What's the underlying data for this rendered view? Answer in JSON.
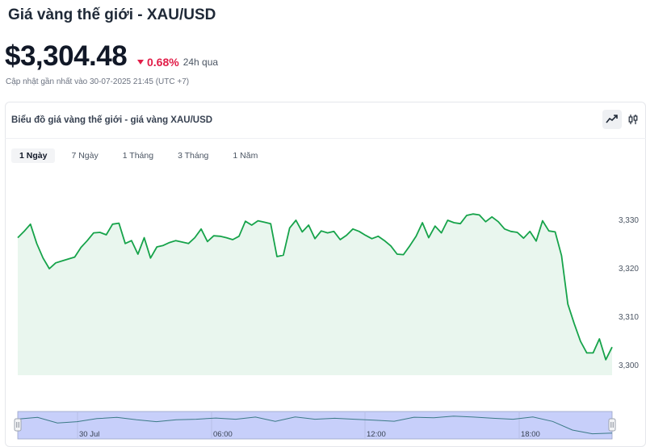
{
  "header": {
    "title": "Giá vàng thế giới - XAU/USD",
    "price": "$3,304.48",
    "change_pct": "0.68%",
    "change_period": "24h qua",
    "updated": "Cập nhật gần nhất vào 30-07-2025 21:45 (UTC +7)"
  },
  "chart_panel": {
    "title": "Biểu đồ giá vàng thế giới - giá vàng XAU/USD",
    "line_icon": "line-chart-icon",
    "candle_icon": "candlestick-icon",
    "tabs": [
      {
        "label": "1 Ngày",
        "active": true
      },
      {
        "label": "7 Ngày",
        "active": false
      },
      {
        "label": "1 Tháng",
        "active": false
      },
      {
        "label": "3 Tháng",
        "active": false
      },
      {
        "label": "1 Năm",
        "active": false
      }
    ]
  },
  "colors": {
    "line": "#16a34a",
    "area": "#e9f6ee",
    "down": "#e11d48",
    "navigator": "#c7cffa"
  },
  "chart_data": {
    "type": "area",
    "y_ticks": [
      "3,330",
      "3,320",
      "3,310",
      "3,300"
    ],
    "y_tick_values": [
      3330,
      3320,
      3310,
      3300
    ],
    "ylim": [
      3299.3,
      3339.3
    ],
    "x_labels": [
      "30 Jul",
      "06:00",
      "12:00",
      "18:00"
    ],
    "grid": false,
    "values": [
      3326.2,
      3327.5,
      3329.0,
      3325.0,
      3322.0,
      3319.8,
      3321.0,
      3321.4,
      3321.8,
      3322.2,
      3324.2,
      3325.6,
      3327.2,
      3327.3,
      3326.8,
      3329.0,
      3329.2,
      3325.0,
      3325.6,
      3322.8,
      3326.2,
      3322.0,
      3324.3,
      3324.6,
      3325.2,
      3325.6,
      3325.3,
      3325.0,
      3326.2,
      3328.0,
      3325.4,
      3326.6,
      3326.5,
      3326.2,
      3325.8,
      3326.5,
      3329.6,
      3328.8,
      3329.7,
      3329.4,
      3329.1,
      3322.3,
      3322.6,
      3328.2,
      3329.8,
      3327.4,
      3328.8,
      3326.0,
      3327.6,
      3327.2,
      3327.5,
      3325.8,
      3326.7,
      3328.0,
      3327.5,
      3326.7,
      3326.0,
      3326.5,
      3325.6,
      3324.5,
      3322.8,
      3322.7,
      3324.5,
      3326.5,
      3329.3,
      3326.2,
      3328.6,
      3327.2,
      3329.8,
      3329.3,
      3329.1,
      3330.8,
      3331.1,
      3330.9,
      3329.5,
      3330.5,
      3329.5,
      3328.0,
      3327.5,
      3327.3,
      3326.1,
      3327.5,
      3325.5,
      3329.7,
      3327.6,
      3327.4,
      3322.5,
      3312.5,
      3308.5,
      3304.8,
      3302.4,
      3302.4,
      3305.3,
      3301.0,
      3303.6
    ]
  },
  "navigator_data": {
    "values": [
      3326.2,
      3329.0,
      3320.0,
      3322.0,
      3327.0,
      3329.0,
      3325.0,
      3322.0,
      3325.0,
      3326.0,
      3328.0,
      3326.0,
      3329.5,
      3322.5,
      3329.8,
      3326.0,
      3327.5,
      3326.0,
      3324.5,
      3322.7,
      3329.3,
      3328.5,
      3331.0,
      3329.5,
      3327.5,
      3326.0,
      3329.7,
      3322.5,
      3308.5,
      3302.4,
      3303.5
    ]
  }
}
